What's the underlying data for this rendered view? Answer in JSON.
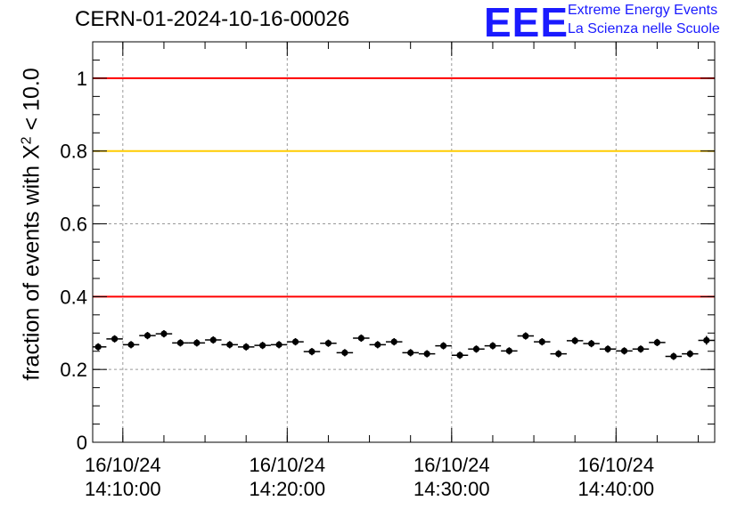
{
  "title": "CERN-01-2024-10-16-00026",
  "logo": {
    "mark": "EEE",
    "line1": "Extreme Energy Events",
    "line2": "La Scienza nelle Scuole"
  },
  "colors": {
    "red_line": "#ff0000",
    "yellow_line": "#ffcc00",
    "points": "#000000",
    "grid": "#999999",
    "logo": "#1a1aff"
  },
  "chart_data": {
    "type": "scatter",
    "ylabel": {
      "text": "fraction of events with X",
      "sup": "2",
      "rest": " < 10.0"
    },
    "ylim": [
      0,
      1.1
    ],
    "yticks": [
      0,
      0.2,
      0.4,
      0.6,
      0.8,
      1
    ],
    "ytick_labels": [
      "0",
      "0.2",
      "0.4",
      "0.6",
      "0.8",
      "1"
    ],
    "xlim": [
      "14:08:10",
      "14:46:00"
    ],
    "xticks": [
      "14:10:00",
      "14:20:00",
      "14:30:00",
      "14:40:00"
    ],
    "xtick_labels": [
      {
        "date": "16/10/24",
        "time": "14:10:00"
      },
      {
        "date": "16/10/24",
        "time": "14:20:00"
      },
      {
        "date": "16/10/24",
        "time": "14:30:00"
      },
      {
        "date": "16/10/24",
        "time": "14:40:00"
      }
    ],
    "grid": true,
    "reference_lines": [
      {
        "y": 1.0,
        "color": "red"
      },
      {
        "y": 0.8,
        "color": "yellow"
      },
      {
        "y": 0.4,
        "color": "red"
      }
    ],
    "bin_width_seconds": 60,
    "x": [
      "14:08:30",
      "14:09:30",
      "14:10:30",
      "14:11:30",
      "14:12:30",
      "14:13:30",
      "14:14:30",
      "14:15:30",
      "14:16:30",
      "14:17:30",
      "14:18:30",
      "14:19:30",
      "14:20:30",
      "14:21:30",
      "14:22:30",
      "14:23:30",
      "14:24:30",
      "14:25:30",
      "14:26:30",
      "14:27:30",
      "14:28:30",
      "14:29:30",
      "14:30:30",
      "14:31:30",
      "14:32:30",
      "14:33:30",
      "14:34:30",
      "14:35:30",
      "14:36:30",
      "14:37:30",
      "14:38:30",
      "14:39:30",
      "14:40:30",
      "14:41:30",
      "14:42:30",
      "14:43:30",
      "14:44:30",
      "14:45:30"
    ],
    "y": [
      0.262,
      0.284,
      0.268,
      0.293,
      0.298,
      0.273,
      0.273,
      0.281,
      0.268,
      0.262,
      0.266,
      0.268,
      0.276,
      0.249,
      0.272,
      0.246,
      0.286,
      0.268,
      0.276,
      0.246,
      0.243,
      0.265,
      0.239,
      0.256,
      0.265,
      0.251,
      0.292,
      0.276,
      0.243,
      0.279,
      0.271,
      0.256,
      0.251,
      0.256,
      0.274,
      0.236,
      0.243,
      0.28
    ],
    "yerr": [
      0.01,
      0.01,
      0.01,
      0.01,
      0.01,
      0.01,
      0.01,
      0.01,
      0.01,
      0.01,
      0.01,
      0.01,
      0.01,
      0.01,
      0.01,
      0.01,
      0.01,
      0.01,
      0.01,
      0.01,
      0.01,
      0.01,
      0.01,
      0.01,
      0.01,
      0.01,
      0.01,
      0.01,
      0.01,
      0.01,
      0.01,
      0.01,
      0.01,
      0.01,
      0.01,
      0.01,
      0.01,
      0.012
    ]
  }
}
